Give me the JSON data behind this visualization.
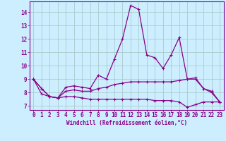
{
  "xlabel": "Windchill (Refroidissement éolien,°C)",
  "x": [
    0,
    1,
    2,
    3,
    4,
    5,
    6,
    7,
    8,
    9,
    10,
    11,
    12,
    13,
    14,
    15,
    16,
    17,
    18,
    19,
    20,
    21,
    22,
    23
  ],
  "line1": [
    9.0,
    8.3,
    7.7,
    7.6,
    8.4,
    8.5,
    8.4,
    8.3,
    9.3,
    9.0,
    10.5,
    12.0,
    14.5,
    14.2,
    10.8,
    10.6,
    9.8,
    10.8,
    12.1,
    9.0,
    9.1,
    8.3,
    8.1,
    7.3
  ],
  "line2": [
    9.0,
    8.3,
    7.7,
    7.6,
    8.1,
    8.2,
    8.1,
    8.1,
    8.3,
    8.4,
    8.6,
    8.7,
    8.8,
    8.8,
    8.8,
    8.8,
    8.8,
    8.8,
    8.9,
    9.0,
    9.0,
    8.3,
    8.0,
    7.3
  ],
  "line3": [
    9.0,
    7.9,
    7.7,
    7.6,
    7.7,
    7.7,
    7.6,
    7.5,
    7.5,
    7.5,
    7.5,
    7.5,
    7.5,
    7.5,
    7.5,
    7.4,
    7.4,
    7.4,
    7.3,
    6.9,
    7.1,
    7.3,
    7.3,
    7.3
  ],
  "line_color": "#880088",
  "bg_color": "#cceeff",
  "grid_color": "#aacccc",
  "ylim": [
    6.7,
    14.8
  ],
  "yticks": [
    7,
    8,
    9,
    10,
    11,
    12,
    13,
    14
  ],
  "xlim": [
    -0.5,
    23.5
  ],
  "tick_fontsize": 5.5,
  "xlabel_fontsize": 5.5
}
